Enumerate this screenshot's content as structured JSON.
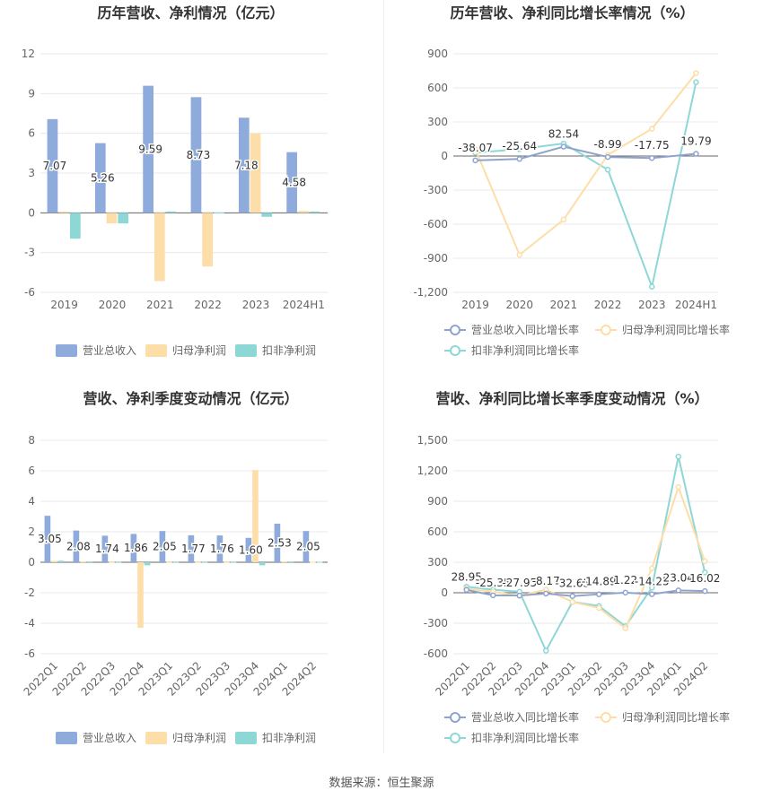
{
  "source_text": "数据来源：恒生聚源",
  "chart_data": [
    {
      "type": "bar",
      "title": "历年营收、净利情况（亿元）",
      "categories": [
        "2019",
        "2020",
        "2021",
        "2022",
        "2023",
        "2024H1"
      ],
      "ylim": [
        -6,
        12
      ],
      "yticks": [
        -6,
        -3,
        0,
        3,
        6,
        9,
        12
      ],
      "grid": true,
      "legend_position": "bottom",
      "label_series": 0,
      "series": [
        {
          "name": "营业总收入",
          "color": "#8eabdb",
          "values": [
            7.07,
            5.26,
            9.59,
            8.73,
            7.18,
            4.58
          ]
        },
        {
          "name": "归母净利润",
          "color": "#fddea8",
          "values": [
            0.1,
            -0.8,
            -5.15,
            -4.05,
            6.0,
            0.15
          ]
        },
        {
          "name": "扣非净利润",
          "color": "#8dd7d6",
          "values": [
            -1.95,
            -0.8,
            0.1,
            0.02,
            -0.3,
            0.1
          ]
        }
      ]
    },
    {
      "type": "line",
      "title": "历年营收、净利同比增长率情况（%）",
      "categories": [
        "2019",
        "2020",
        "2021",
        "2022",
        "2023",
        "2024H1"
      ],
      "ylim": [
        -1200,
        900
      ],
      "yticks": [
        -1200,
        -900,
        -600,
        -300,
        0,
        300,
        600,
        900
      ],
      "grid": true,
      "legend_position": "bottom",
      "label_series": 0,
      "series": [
        {
          "name": "营业总收入同比增长率",
          "color": "#8ea4cf",
          "values": [
            -38.07,
            -25.64,
            82.54,
            -8.99,
            -17.75,
            19.79
          ]
        },
        {
          "name": "归母净利润同比增长率",
          "color": "#fddea8",
          "values": [
            60,
            -870,
            -560,
            10,
            240,
            730
          ]
        },
        {
          "name": "扣非净利润同比增长率",
          "color": "#8dd7d6",
          "values": [
            30,
            60,
            110,
            -120,
            -1150,
            650
          ]
        }
      ]
    },
    {
      "type": "bar",
      "title": "营收、净利季度变动情况（亿元）",
      "categories": [
        "2022Q1",
        "2022Q2",
        "2022Q3",
        "2022Q4",
        "2023Q1",
        "2023Q2",
        "2023Q3",
        "2023Q4",
        "2024Q1",
        "2024Q2"
      ],
      "ylim": [
        -6,
        8
      ],
      "yticks": [
        -6,
        -4,
        -2,
        0,
        2,
        4,
        6,
        8
      ],
      "grid": true,
      "legend_position": "bottom",
      "label_series": 0,
      "series": [
        {
          "name": "营业总收入",
          "color": "#8eabdb",
          "values": [
            3.05,
            2.08,
            1.74,
            1.86,
            2.05,
            1.77,
            1.76,
            1.6,
            2.53,
            2.05
          ]
        },
        {
          "name": "归母净利润",
          "color": "#fddea8",
          "values": [
            0.1,
            0.05,
            0.02,
            -4.3,
            0.02,
            0.02,
            0.02,
            6.05,
            0.05,
            0.03
          ]
        },
        {
          "name": "扣非净利润",
          "color": "#8dd7d6",
          "values": [
            0.1,
            0.05,
            0.02,
            -0.2,
            0.02,
            0.02,
            0.02,
            -0.2,
            0.05,
            0.03
          ]
        }
      ]
    },
    {
      "type": "line",
      "title": "营收、净利同比增长率季度变动情况（%）",
      "categories": [
        "2022Q1",
        "2022Q2",
        "2022Q3",
        "2022Q4",
        "2023Q1",
        "2023Q2",
        "2023Q3",
        "2023Q4",
        "2024Q1",
        "2024Q2"
      ],
      "ylim": [
        -600,
        1500
      ],
      "yticks": [
        -600,
        -300,
        0,
        300,
        600,
        900,
        1200,
        1500
      ],
      "grid": true,
      "legend_position": "bottom",
      "label_series": 0,
      "series": [
        {
          "name": "营业总收入同比增长率",
          "color": "#8ea4cf",
          "values": [
            28.95,
            -25.35,
            -27.95,
            -8.17,
            -32.65,
            -14.89,
            1.22,
            -14.25,
            23.04,
            16.02
          ]
        },
        {
          "name": "归母净利润同比增长率",
          "color": "#fddea8",
          "values": [
            40,
            10,
            -30,
            30,
            -90,
            -150,
            -350,
            240,
            1040,
            310
          ]
        },
        {
          "name": "扣非净利润同比增长率",
          "color": "#8dd7d6",
          "values": [
            60,
            30,
            10,
            -570,
            -90,
            -130,
            -330,
            50,
            1340,
            200
          ]
        }
      ]
    }
  ]
}
